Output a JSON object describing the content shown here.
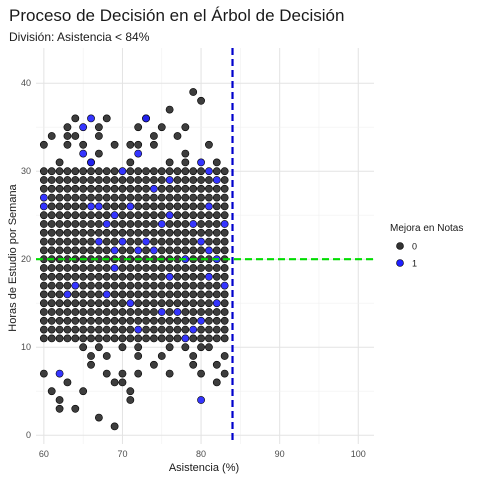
{
  "chart_data": {
    "type": "scatter",
    "title": "Proceso de Decisión en el Árbol de Decisión",
    "subtitle": "División: Asistencia < 84%",
    "xlabel": "Asistencia (%)",
    "ylabel": "Horas de Estudio por Semana",
    "xlim": [
      59,
      102
    ],
    "ylim": [
      -1,
      44
    ],
    "x_ticks": [
      60,
      70,
      80,
      90,
      100
    ],
    "y_ticks": [
      0,
      10,
      20,
      30,
      40
    ],
    "grid": true,
    "legend": {
      "title": "Mejora en Notas",
      "position": "right",
      "entries": [
        "0",
        "1"
      ]
    },
    "colors": {
      "0": "#333333",
      "1": "#1f1fff",
      "vline": "#0000cc",
      "hline": "#00dd00"
    },
    "reference_lines": [
      {
        "orientation": "vertical",
        "value": 84
      },
      {
        "orientation": "horizontal",
        "value": 20
      }
    ],
    "series": [
      {
        "name": "0",
        "points": [
          [
            60,
            33
          ],
          [
            60,
            7
          ],
          [
            61,
            34
          ],
          [
            61,
            27
          ],
          [
            61,
            5
          ],
          [
            62,
            31
          ],
          [
            62,
            4
          ],
          [
            62,
            3
          ],
          [
            63,
            35
          ],
          [
            63,
            34
          ],
          [
            63,
            33
          ],
          [
            64,
            36
          ],
          [
            64,
            34
          ],
          [
            65,
            33
          ],
          [
            65,
            5
          ],
          [
            66,
            31
          ],
          [
            66,
            8
          ],
          [
            66,
            29
          ],
          [
            67,
            35
          ],
          [
            67,
            34
          ],
          [
            67,
            32
          ],
          [
            67,
            2
          ],
          [
            68,
            36
          ],
          [
            68,
            30
          ],
          [
            68,
            7
          ],
          [
            69,
            33
          ],
          [
            69,
            6
          ],
          [
            69,
            1
          ],
          [
            70,
            7
          ],
          [
            70,
            6
          ],
          [
            71,
            33
          ],
          [
            71,
            31
          ],
          [
            71,
            5
          ],
          [
            71,
            4
          ],
          [
            72,
            35
          ],
          [
            72,
            33
          ],
          [
            72,
            9
          ],
          [
            72,
            7
          ],
          [
            73,
            36
          ],
          [
            74,
            34
          ],
          [
            74,
            33
          ],
          [
            74,
            8
          ],
          [
            75,
            35
          ],
          [
            75,
            9
          ],
          [
            76,
            37
          ],
          [
            76,
            31
          ],
          [
            76,
            7
          ],
          [
            77,
            34
          ],
          [
            78,
            35
          ],
          [
            78,
            32
          ],
          [
            78,
            31
          ],
          [
            79,
            39
          ],
          [
            79,
            9
          ],
          [
            79,
            8
          ],
          [
            80,
            38
          ],
          [
            80,
            7
          ],
          [
            81,
            33
          ],
          [
            81,
            10
          ],
          [
            82,
            31
          ],
          [
            82,
            8
          ],
          [
            82,
            6
          ],
          [
            83,
            30
          ],
          [
            83,
            9
          ],
          [
            83,
            7
          ],
          [
            64,
            3
          ],
          [
            63,
            6
          ],
          [
            65,
            10
          ],
          [
            66,
            9
          ],
          [
            67,
            10
          ],
          [
            68,
            9
          ],
          [
            69,
            11
          ],
          [
            70,
            10
          ],
          [
            71,
            11
          ],
          [
            72,
            10
          ],
          [
            73,
            12
          ],
          [
            74,
            11
          ],
          [
            75,
            11
          ],
          [
            76,
            10
          ],
          [
            77,
            11
          ],
          [
            78,
            10
          ],
          [
            80,
            10
          ],
          [
            81,
            12
          ]
        ]
      },
      {
        "name": "1",
        "points": [
          [
            60,
            27
          ],
          [
            60,
            26
          ],
          [
            62,
            7
          ],
          [
            63,
            16
          ],
          [
            64,
            17
          ],
          [
            65,
            35
          ],
          [
            65,
            32
          ],
          [
            66,
            36
          ],
          [
            66,
            31
          ],
          [
            66,
            26
          ],
          [
            67,
            26
          ],
          [
            67,
            22
          ],
          [
            68,
            24
          ],
          [
            68,
            16
          ],
          [
            69,
            25
          ],
          [
            69,
            21
          ],
          [
            69,
            19
          ],
          [
            70,
            30
          ],
          [
            70,
            22
          ],
          [
            71,
            26
          ],
          [
            71,
            15
          ],
          [
            72,
            32
          ],
          [
            72,
            21
          ],
          [
            72,
            12
          ],
          [
            73,
            36
          ],
          [
            73,
            22
          ],
          [
            74,
            28
          ],
          [
            74,
            21
          ],
          [
            75,
            24
          ],
          [
            75,
            14
          ],
          [
            76,
            29
          ],
          [
            76,
            25
          ],
          [
            76,
            18
          ],
          [
            77,
            14
          ],
          [
            78,
            20
          ],
          [
            78,
            11
          ],
          [
            79,
            24
          ],
          [
            79,
            12
          ],
          [
            80,
            31
          ],
          [
            80,
            22
          ],
          [
            80,
            13
          ],
          [
            80,
            4
          ],
          [
            81,
            30
          ],
          [
            81,
            26
          ],
          [
            81,
            21
          ],
          [
            81,
            18
          ],
          [
            82,
            29
          ],
          [
            82,
            20
          ],
          [
            82,
            15
          ],
          [
            83,
            24
          ],
          [
            83,
            17
          ]
        ]
      }
    ],
    "dense_region": {
      "x_range": [
        60,
        83
      ],
      "y_range": [
        11,
        30
      ],
      "class": "0",
      "note_step": 1
    }
  }
}
